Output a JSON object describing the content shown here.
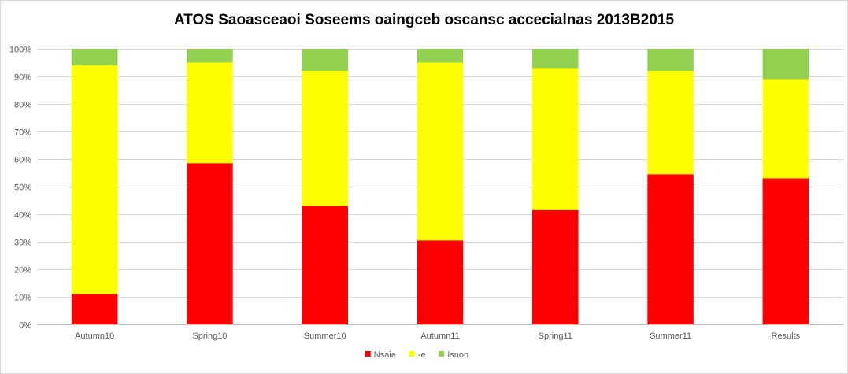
{
  "chart_data": {
    "type": "bar",
    "stacked": "percent",
    "title": "ATOS Saoasceaoi Soseems oaingceb oscansc accecialnas 2013B2015",
    "xlabel": "",
    "ylabel": "",
    "ylim": [
      0,
      100
    ],
    "y_ticks": [
      "0%",
      "10%",
      "20%",
      "30%",
      "40%",
      "50%",
      "60%",
      "70%",
      "80%",
      "90%",
      "100%"
    ],
    "grid": true,
    "legend_position": "bottom",
    "categories": [
      "Autumn10",
      "Spring10",
      "Summer10",
      "Autumn11",
      "Spring11",
      "Summer11",
      "Results"
    ],
    "series": [
      {
        "name": "Nsaie",
        "color": "#ff0000",
        "values": [
          11,
          58.5,
          43,
          30.5,
          41.5,
          54.5,
          53
        ]
      },
      {
        "name": "-e",
        "color": "#ffff00",
        "values": [
          83,
          36.5,
          49,
          64.5,
          51.5,
          37.5,
          36
        ]
      },
      {
        "name": "Isnon",
        "color": "#92d050",
        "values": [
          6,
          5,
          8,
          5,
          7,
          8,
          11
        ]
      }
    ]
  }
}
